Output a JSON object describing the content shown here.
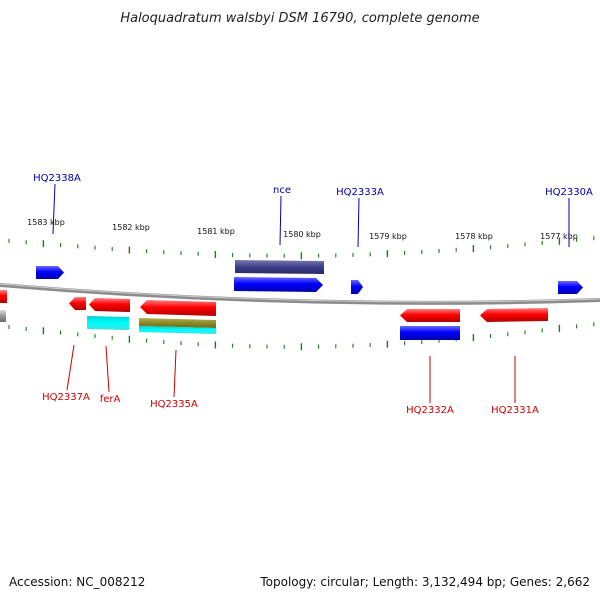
{
  "title": "Haloquadratum walsbyi DSM 16790, complete genome",
  "footer": {
    "accession": "Accession: NC_008212",
    "summary": "Topology: circular; Length: 3,132,494 bp; Genes: 2,662"
  },
  "colors": {
    "forward": "#0000ff",
    "reverse": "#ff0000",
    "backbone": "#8c8c8c",
    "tick": "#1a7a1a",
    "forward_label": "#0000aa",
    "reverse_label": "#cc0000"
  },
  "ticks": [
    "1583 kbp",
    "1582 kbp",
    "1581 kbp",
    "1580 kbp",
    "1579 kbp",
    "1578 kbp",
    "1577 kbp"
  ],
  "forward_labels": [
    "HQ2338A",
    "nce",
    "HQ2333A",
    "HQ2330A"
  ],
  "reverse_labels": [
    "HQ2337A",
    "ferA",
    "HQ2335A",
    "HQ2332A",
    "HQ2331A"
  ]
}
